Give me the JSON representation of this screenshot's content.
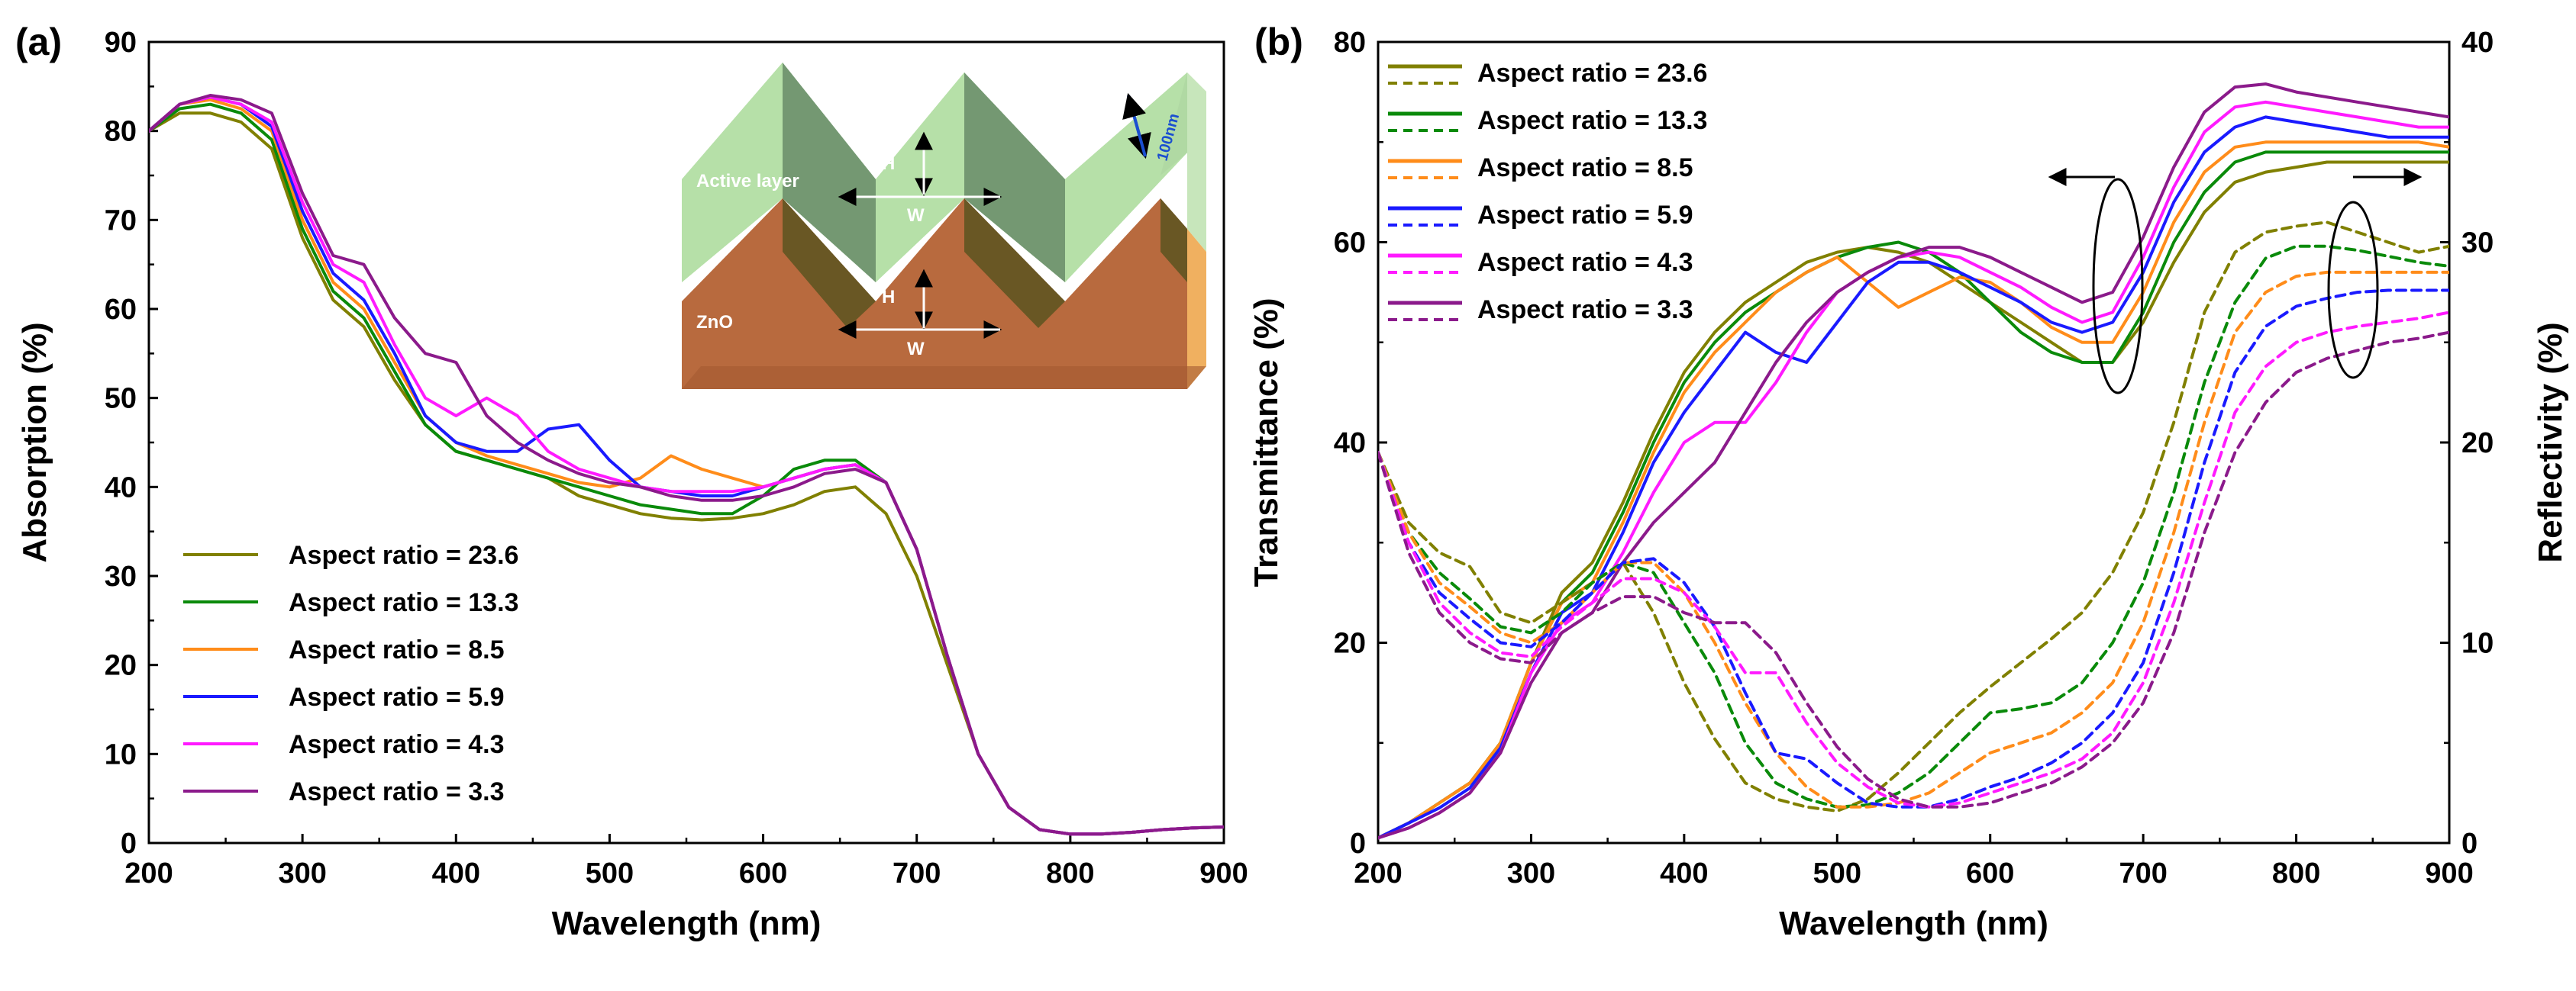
{
  "panels": {
    "a": {
      "label": "(a)"
    },
    "b": {
      "label": "(b)"
    }
  },
  "inset": {
    "active_layer": "Active layer",
    "zno": "ZnO",
    "h": "H",
    "w": "W",
    "scale": "100nm"
  },
  "colors": {
    "23.6": "#808000",
    "13.3": "#0a8a0a",
    "8.5": "#ff8c1a",
    "5.9": "#1a1aff",
    "4.3": "#ff1aff",
    "3.3": "#8b1a8b"
  },
  "chart_data": [
    {
      "type": "line",
      "title": "",
      "xlabel": "Wavelength (nm)",
      "ylabel": "Absorption (%)",
      "xlim": [
        200,
        900
      ],
      "ylim": [
        0,
        90
      ],
      "xticks": [
        "200",
        "300",
        "400",
        "500",
        "600",
        "700",
        "800",
        "900"
      ],
      "yticks": [
        "0",
        "10",
        "20",
        "30",
        "40",
        "50",
        "60",
        "70",
        "80",
        "90"
      ],
      "x": [
        200,
        220,
        240,
        260,
        280,
        300,
        320,
        340,
        360,
        380,
        400,
        420,
        440,
        460,
        480,
        500,
        520,
        540,
        560,
        580,
        600,
        620,
        640,
        660,
        680,
        700,
        720,
        740,
        760,
        780,
        800,
        820,
        840,
        860,
        880,
        900
      ],
      "legend": [
        "Aspect ratio = 23.6",
        "Aspect ratio = 13.3",
        "Aspect ratio = 8.5",
        "Aspect ratio = 5.9",
        "Aspect ratio = 4.3",
        "Aspect ratio = 3.3"
      ],
      "series": [
        {
          "name": "Aspect ratio = 23.6",
          "values": [
            80,
            82,
            82,
            81,
            78,
            68,
            61,
            58,
            52,
            47,
            44,
            43,
            42,
            41,
            39,
            38,
            37,
            36.5,
            36.3,
            36.5,
            37,
            38,
            39.5,
            40,
            37,
            30,
            20,
            10,
            4,
            1.5,
            1,
            1,
            1.2,
            1.5,
            1.7,
            1.8
          ]
        },
        {
          "name": "Aspect ratio = 13.3",
          "values": [
            80,
            82.5,
            83,
            82,
            79,
            69,
            62,
            59,
            53,
            47,
            44,
            43,
            42,
            41,
            40,
            39,
            38,
            37.5,
            37,
            37,
            39,
            42,
            43,
            43,
            40.5,
            33,
            21,
            10,
            4,
            1.5,
            1,
            1,
            1.2,
            1.5,
            1.7,
            1.8
          ]
        },
        {
          "name": "Aspect ratio = 8.5",
          "values": [
            80,
            83,
            83.5,
            82.5,
            80,
            70,
            63,
            60,
            54,
            48,
            45,
            43.5,
            42.5,
            41.5,
            40.5,
            40,
            41,
            43.5,
            42,
            41,
            40,
            41,
            42,
            42.5,
            40.5,
            33,
            21,
            10,
            4,
            1.5,
            1,
            1,
            1.2,
            1.5,
            1.7,
            1.8
          ]
        },
        {
          "name": "Aspect ratio = 5.9",
          "values": [
            80,
            83,
            83.8,
            83,
            80.5,
            71,
            64,
            61,
            55,
            48,
            45,
            44,
            44,
            46.5,
            47,
            43,
            40,
            39.5,
            39,
            39,
            40,
            41,
            42,
            42.5,
            40.5,
            33,
            21,
            10,
            4,
            1.5,
            1,
            1,
            1.2,
            1.5,
            1.7,
            1.8
          ]
        },
        {
          "name": "Aspect ratio = 4.3",
          "values": [
            80,
            83,
            83.8,
            83,
            81,
            72,
            65,
            63,
            56,
            50,
            48,
            50,
            48,
            44,
            42,
            41,
            40,
            39.5,
            39.5,
            39.5,
            40,
            41,
            42,
            42.5,
            40.5,
            33,
            21,
            10,
            4,
            1.5,
            1,
            1,
            1.2,
            1.5,
            1.7,
            1.8
          ]
        },
        {
          "name": "Aspect ratio = 3.3",
          "values": [
            80,
            83,
            84,
            83.5,
            82,
            73,
            66,
            65,
            59,
            55,
            54,
            48,
            45,
            43,
            41.5,
            40.5,
            40,
            39,
            38.5,
            38.5,
            39,
            40,
            41.5,
            42,
            40.5,
            33,
            21,
            10,
            4,
            1.5,
            1,
            1,
            1.2,
            1.5,
            1.7,
            1.8
          ]
        }
      ]
    },
    {
      "type": "line",
      "title": "",
      "xlabel": "Wavelength (nm)",
      "ylabel": "Transmittance (%)",
      "ylabel_right": "Reflectivity (%)",
      "xlim": [
        200,
        900
      ],
      "ylim": [
        0,
        80
      ],
      "ylim_right": [
        0,
        40
      ],
      "xticks": [
        "200",
        "300",
        "400",
        "500",
        "600",
        "700",
        "800",
        "900"
      ],
      "yticks": [
        "0",
        "20",
        "40",
        "60",
        "80"
      ],
      "yticks_right": [
        "0",
        "10",
        "20",
        "30",
        "40"
      ],
      "x": [
        200,
        220,
        240,
        260,
        280,
        300,
        320,
        340,
        360,
        380,
        400,
        420,
        440,
        460,
        480,
        500,
        520,
        540,
        560,
        580,
        600,
        620,
        640,
        660,
        680,
        700,
        720,
        740,
        760,
        780,
        800,
        820,
        840,
        860,
        880,
        900
      ],
      "legend": [
        "Aspect ratio = 23.6",
        "Aspect ratio = 13.3",
        "Aspect ratio = 8.5",
        "Aspect ratio = 5.9",
        "Aspect ratio = 4.3",
        "Aspect ratio = 3.3"
      ],
      "transmittance_series": [
        {
          "name": "Aspect ratio = 23.6",
          "values": [
            0.5,
            2,
            4,
            6,
            10,
            18,
            25,
            28,
            34,
            41,
            47,
            51,
            54,
            56,
            58,
            59,
            59.5,
            59,
            58,
            56,
            54,
            52,
            50,
            48,
            48,
            52,
            58,
            63,
            66,
            67,
            67.5,
            68,
            68,
            68,
            68,
            68
          ]
        },
        {
          "name": "Aspect ratio = 13.3",
          "values": [
            0.5,
            2,
            4,
            6,
            10,
            18,
            24,
            27,
            33,
            40,
            46,
            50,
            53,
            55,
            57,
            58.5,
            59.5,
            60,
            59,
            57,
            54,
            51,
            49,
            48,
            48,
            53,
            60,
            65,
            68,
            69,
            69,
            69,
            69,
            69,
            69,
            69
          ]
        },
        {
          "name": "Aspect ratio = 8.5",
          "values": [
            0.5,
            2,
            4,
            6,
            10,
            18,
            24,
            26,
            32,
            39,
            45,
            49,
            52,
            55,
            57,
            58.5,
            56,
            53.5,
            55,
            56.5,
            56,
            54,
            51.5,
            50,
            50,
            55,
            62,
            67,
            69.5,
            70,
            70,
            70,
            70,
            70,
            70,
            69.5
          ]
        },
        {
          "name": "Aspect ratio = 5.9",
          "values": [
            0.5,
            2,
            3.5,
            5.5,
            9.5,
            17,
            23,
            25,
            31,
            38,
            43,
            47,
            51,
            49,
            48,
            52,
            56,
            58,
            58,
            57,
            55.5,
            54,
            52,
            51,
            52,
            57,
            64,
            69,
            71.5,
            72.5,
            72,
            71.5,
            71,
            70.5,
            70.5,
            70.5
          ]
        },
        {
          "name": "Aspect ratio = 4.3",
          "values": [
            0.5,
            1.5,
            3,
            5,
            9,
            17,
            22,
            24,
            29,
            35,
            40,
            42,
            42,
            46,
            51,
            55,
            57,
            58.5,
            59,
            58.5,
            57,
            55.5,
            53.5,
            52,
            53,
            58.5,
            65.5,
            71,
            73.5,
            74,
            73.5,
            73,
            72.5,
            72,
            71.5,
            71.5
          ]
        },
        {
          "name": "Aspect ratio = 3.3",
          "values": [
            0.5,
            1.5,
            3,
            5,
            9,
            16,
            21,
            23,
            28,
            32,
            35,
            38,
            43,
            48,
            52,
            55,
            57,
            58.5,
            59.5,
            59.5,
            58.5,
            57,
            55.5,
            54,
            55,
            60.5,
            67.5,
            73,
            75.5,
            75.8,
            75,
            74.5,
            74,
            73.5,
            73,
            72.5
          ]
        }
      ],
      "reflectivity_series": [
        {
          "name": "Aspect ratio = 23.6",
          "values": [
            19.5,
            16,
            14.5,
            13.8,
            11.5,
            11,
            12,
            13,
            14,
            11.5,
            8,
            5.2,
            3,
            2.2,
            1.8,
            1.6,
            2.2,
            3.5,
            5,
            6.5,
            7.8,
            9,
            10.2,
            11.5,
            13.5,
            16.5,
            21,
            26.5,
            29.5,
            30.5,
            30.8,
            31,
            30.5,
            30,
            29.5,
            29.8
          ]
        },
        {
          "name": "Aspect ratio = 13.3",
          "values": [
            19.5,
            15.5,
            13.5,
            12.2,
            10.8,
            10.5,
            11.5,
            13,
            14,
            13.5,
            11,
            8.5,
            5,
            3,
            2.2,
            1.8,
            1.9,
            2.5,
            3.5,
            5,
            6.5,
            6.7,
            7,
            8,
            10,
            13,
            17.5,
            23,
            27,
            29.2,
            29.8,
            29.8,
            29.6,
            29.3,
            29,
            28.8
          ]
        },
        {
          "name": "Aspect ratio = 8.5",
          "values": [
            19.5,
            15.5,
            13,
            11.8,
            10.5,
            10,
            11,
            12.5,
            14,
            14,
            12.5,
            10,
            7,
            4.5,
            2.8,
            1.8,
            1.8,
            2,
            2.5,
            3.5,
            4.5,
            5,
            5.5,
            6.5,
            8,
            11,
            15.5,
            21,
            25.5,
            27.5,
            28.3,
            28.5,
            28.5,
            28.5,
            28.5,
            28.5
          ]
        },
        {
          "name": "Aspect ratio = 5.9",
          "values": [
            19.5,
            15,
            12.5,
            11.2,
            10,
            9.8,
            11,
            12.5,
            14,
            14.2,
            13,
            10.8,
            7.5,
            4.5,
            4.2,
            3,
            2,
            1.8,
            1.8,
            2.2,
            2.8,
            3.3,
            4,
            5,
            6.5,
            9,
            13.5,
            19,
            23.5,
            25.8,
            26.8,
            27.2,
            27.5,
            27.6,
            27.6,
            27.6
          ]
        },
        {
          "name": "Aspect ratio = 4.3",
          "values": [
            19.5,
            15,
            12,
            10.5,
            9.5,
            9.3,
            10.8,
            12,
            13.2,
            13.2,
            12.5,
            10.8,
            8.5,
            8.5,
            6,
            4,
            2.8,
            2,
            1.8,
            2,
            2.5,
            3,
            3.5,
            4.2,
            5.5,
            8,
            12,
            17,
            21.5,
            23.8,
            25,
            25.5,
            25.8,
            26,
            26.2,
            26.5
          ]
        },
        {
          "name": "Aspect ratio = 3.3",
          "values": [
            19.5,
            14.5,
            11.5,
            10,
            9.2,
            9,
            10.5,
            11.5,
            12.3,
            12.3,
            11.5,
            11,
            11,
            9.5,
            7,
            4.8,
            3.2,
            2.2,
            1.8,
            1.8,
            2,
            2.5,
            3,
            3.8,
            5,
            7,
            10.5,
            15.5,
            19.5,
            22,
            23.5,
            24.2,
            24.6,
            25,
            25.2,
            25.5
          ]
        }
      ]
    }
  ]
}
